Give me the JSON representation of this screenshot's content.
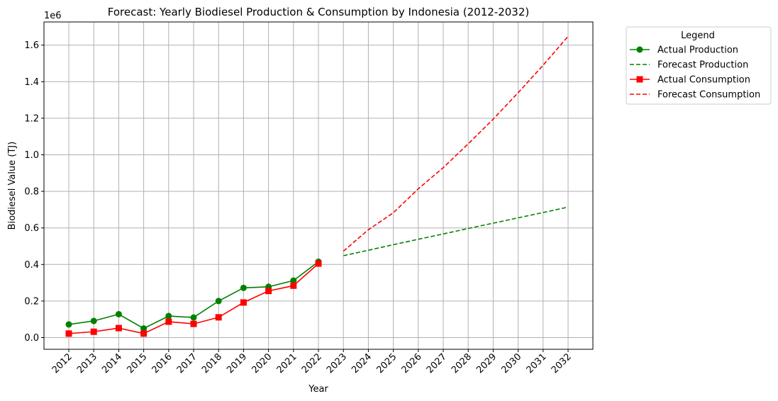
{
  "chart_data": {
    "type": "line",
    "title": "Forecast: Yearly Biodiesel Production & Consumption by Indonesia (2012-2032)",
    "xlabel": "Year",
    "ylabel": "Biodiesel Value (TJ)",
    "y_offset_label": "1e6",
    "x": [
      "2012",
      "2013",
      "2014",
      "2015",
      "2016",
      "2017",
      "2018",
      "2019",
      "2020",
      "2021",
      "2022",
      "2023",
      "2024",
      "2025",
      "2026",
      "2027",
      "2028",
      "2029",
      "2030",
      "2031",
      "2032"
    ],
    "yticks": [
      0.0,
      0.2,
      0.4,
      0.6,
      0.8,
      1.0,
      1.2,
      1.4,
      1.6
    ],
    "ytick_labels": [
      "0.0",
      "0.2",
      "0.4",
      "0.6",
      "0.8",
      "1.0",
      "1.2",
      "1.4",
      "1.6"
    ],
    "ylim": [
      -0.06,
      1.73
    ],
    "grid": true,
    "legend": {
      "title": "Legend",
      "placement": "outside-right"
    },
    "series": [
      {
        "name": "Actual Production",
        "color": "#008000",
        "style": "solid",
        "marker": "circle",
        "points": [
          [
            "2012",
            0.072
          ],
          [
            "2013",
            0.091
          ],
          [
            "2014",
            0.128
          ],
          [
            "2015",
            0.05
          ],
          [
            "2016",
            0.118
          ],
          [
            "2017",
            0.11
          ],
          [
            "2018",
            0.2
          ],
          [
            "2019",
            0.272
          ],
          [
            "2020",
            0.278
          ],
          [
            "2021",
            0.312
          ],
          [
            "2022",
            0.415
          ]
        ]
      },
      {
        "name": "Forecast Production",
        "color": "#008000",
        "style": "dashed",
        "marker": "none",
        "points": [
          [
            "2023",
            0.448
          ],
          [
            "2024",
            0.478
          ],
          [
            "2025",
            0.508
          ],
          [
            "2026",
            0.538
          ],
          [
            "2027",
            0.567
          ],
          [
            "2028",
            0.597
          ],
          [
            "2029",
            0.626
          ],
          [
            "2030",
            0.655
          ],
          [
            "2031",
            0.684
          ],
          [
            "2032",
            0.714
          ]
        ]
      },
      {
        "name": "Actual Consumption",
        "color": "#ff0000",
        "style": "solid",
        "marker": "square",
        "points": [
          [
            "2012",
            0.022
          ],
          [
            "2013",
            0.032
          ],
          [
            "2014",
            0.052
          ],
          [
            "2015",
            0.022
          ],
          [
            "2016",
            0.087
          ],
          [
            "2017",
            0.075
          ],
          [
            "2018",
            0.111
          ],
          [
            "2019",
            0.192
          ],
          [
            "2020",
            0.255
          ],
          [
            "2021",
            0.284
          ],
          [
            "2022",
            0.405
          ]
        ]
      },
      {
        "name": "Forecast Consumption",
        "color": "#ff0000",
        "style": "dashed",
        "marker": "none",
        "points": [
          [
            "2023",
            0.473
          ],
          [
            "2024",
            0.59
          ],
          [
            "2025",
            0.683
          ],
          [
            "2026",
            0.814
          ],
          [
            "2027",
            0.93
          ],
          [
            "2028",
            1.06
          ],
          [
            "2029",
            1.195
          ],
          [
            "2030",
            1.34
          ],
          [
            "2031",
            1.49
          ],
          [
            "2032",
            1.648
          ]
        ]
      }
    ]
  }
}
